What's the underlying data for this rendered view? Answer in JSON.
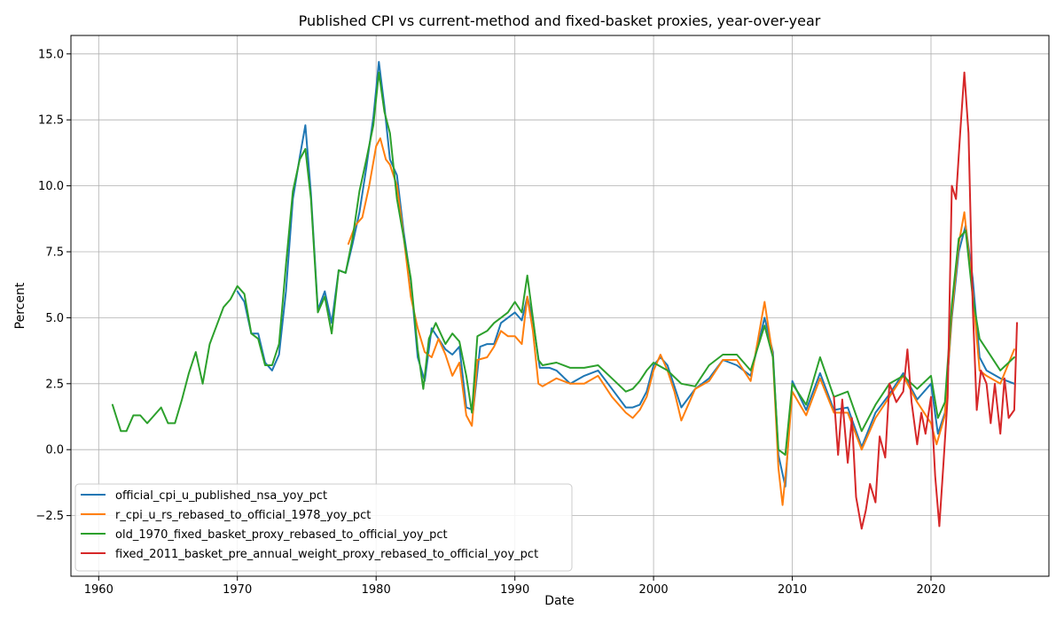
{
  "chart_data": {
    "type": "line",
    "title": "Published CPI vs current-method and fixed-basket proxies, year-over-year",
    "xlabel": "Date",
    "ylabel": "Percent",
    "xlim": [
      1958,
      2028.5
    ],
    "ylim": [
      -4.8,
      15.7
    ],
    "xticks": [
      1960,
      1970,
      1980,
      1990,
      2000,
      2010,
      2020
    ],
    "yticks": [
      -2.5,
      0.0,
      2.5,
      5.0,
      7.5,
      10.0,
      12.5,
      15.0
    ],
    "ytick_labels": [
      "−2.5",
      "0.0",
      "2.5",
      "5.0",
      "7.5",
      "10.0",
      "12.5",
      "15.0"
    ],
    "grid": true,
    "legend_position": "lower-left",
    "series": [
      {
        "name": "official_cpi_u_published_nsa_yoy_pct",
        "color": "#1f77b4",
        "x": [
          1970.0,
          1970.5,
          1971.0,
          1971.5,
          1972.0,
          1972.5,
          1973.0,
          1973.5,
          1974.0,
          1974.5,
          1974.9,
          1975.3,
          1975.8,
          1976.3,
          1976.8,
          1977.3,
          1977.8,
          1978.3,
          1978.8,
          1979.3,
          1979.8,
          1980.2,
          1980.6,
          1981.0,
          1981.5,
          1982.0,
          1982.5,
          1983.0,
          1983.5,
          1984.0,
          1984.5,
          1985.0,
          1985.5,
          1986.0,
          1986.5,
          1987.0,
          1987.5,
          1988.0,
          1988.5,
          1989.0,
          1989.5,
          1990.0,
          1990.5,
          1990.9,
          1991.3,
          1991.8,
          1992.5,
          1993.0,
          1994.0,
          1995.0,
          1996.0,
          1997.0,
          1998.0,
          1998.5,
          1999.0,
          1999.5,
          2000.0,
          2000.5,
          2001.0,
          2002.0,
          2003.0,
          2004.0,
          2005.0,
          2006.0,
          2007.0,
          2008.0,
          2008.6,
          2009.0,
          2009.5,
          2010.0,
          2011.0,
          2012.0,
          2013.0,
          2014.0,
          2015.0,
          2016.0,
          2017.0,
          2018.0,
          2019.0,
          2020.0,
          2020.5,
          2021.0,
          2021.5,
          2022.0,
          2022.5,
          2023.0,
          2023.5,
          2024.0,
          2025.0,
          2026.0
        ],
        "y": [
          6.0,
          5.6,
          4.4,
          4.4,
          3.3,
          3.0,
          3.6,
          6.0,
          9.5,
          11.1,
          12.3,
          9.7,
          5.3,
          6.0,
          4.8,
          6.8,
          6.7,
          7.8,
          9.0,
          10.7,
          12.6,
          14.7,
          13.0,
          11.0,
          10.4,
          8.2,
          6.4,
          3.5,
          2.6,
          4.6,
          4.2,
          3.8,
          3.6,
          3.9,
          1.6,
          1.5,
          3.9,
          4.0,
          4.0,
          4.8,
          5.0,
          5.2,
          4.9,
          5.8,
          4.9,
          3.1,
          3.1,
          3.0,
          2.5,
          2.8,
          3.0,
          2.3,
          1.6,
          1.6,
          1.7,
          2.2,
          3.2,
          3.5,
          3.2,
          1.6,
          2.3,
          2.7,
          3.4,
          3.2,
          2.8,
          5.0,
          3.7,
          -0.2,
          -1.4,
          2.6,
          1.5,
          2.9,
          1.5,
          1.6,
          0.1,
          1.4,
          2.1,
          2.9,
          1.9,
          2.5,
          0.6,
          1.4,
          5.0,
          7.5,
          8.5,
          6.5,
          3.5,
          3.0,
          2.7,
          2.5
        ]
      },
      {
        "name": "r_cpi_u_rs_rebased_to_official_1978_yoy_pct",
        "color": "#ff7f0e",
        "x": [
          1978.0,
          1978.5,
          1979.0,
          1979.5,
          1980.0,
          1980.3,
          1980.7,
          1981.0,
          1981.5,
          1982.0,
          1982.5,
          1983.0,
          1983.5,
          1984.0,
          1984.5,
          1985.0,
          1985.5,
          1986.0,
          1986.5,
          1986.9,
          1987.3,
          1988.0,
          1988.5,
          1989.0,
          1989.5,
          1990.0,
          1990.5,
          1990.9,
          1991.3,
          1991.7,
          1992.0,
          1993.0,
          1994.0,
          1995.0,
          1996.0,
          1997.0,
          1998.0,
          1998.5,
          1999.0,
          1999.5,
          2000.0,
          2000.5,
          2001.0,
          2001.5,
          2002.0,
          2003.0,
          2004.0,
          2005.0,
          2006.0,
          2007.0,
          2008.0,
          2008.6,
          2009.0,
          2009.3,
          2009.6,
          2010.0,
          2011.0,
          2012.0,
          2013.0,
          2014.0,
          2015.0,
          2016.0,
          2017.0,
          2018.0,
          2019.0,
          2020.0,
          2020.4,
          2021.0,
          2021.5,
          2022.0,
          2022.4,
          2023.0,
          2023.5,
          2024.0,
          2025.0,
          2026.0
        ],
        "y": [
          7.8,
          8.5,
          8.8,
          10.0,
          11.5,
          11.8,
          11.0,
          10.8,
          10.0,
          8.0,
          5.8,
          4.6,
          3.7,
          3.5,
          4.2,
          3.6,
          2.8,
          3.3,
          1.3,
          0.9,
          3.4,
          3.5,
          3.9,
          4.5,
          4.3,
          4.3,
          4.0,
          5.8,
          4.5,
          2.5,
          2.4,
          2.7,
          2.5,
          2.5,
          2.8,
          2.0,
          1.4,
          1.2,
          1.5,
          2.0,
          3.0,
          3.6,
          3.0,
          2.2,
          1.1,
          2.3,
          2.6,
          3.4,
          3.4,
          2.6,
          5.6,
          3.5,
          -0.7,
          -2.1,
          -0.5,
          2.2,
          1.3,
          2.7,
          1.4,
          1.4,
          0.0,
          1.2,
          2.0,
          2.8,
          1.8,
          1.0,
          0.2,
          1.3,
          5.2,
          7.8,
          9.0,
          6.0,
          3.0,
          2.8,
          2.5,
          3.8
        ]
      },
      {
        "name": "old_1970_fixed_basket_proxy_rebased_to_official_yoy_pct",
        "color": "#2ca02c",
        "x": [
          1961.0,
          1961.3,
          1961.6,
          1962.0,
          1962.5,
          1963.0,
          1963.5,
          1964.0,
          1964.5,
          1965.0,
          1965.5,
          1966.0,
          1966.5,
          1967.0,
          1967.5,
          1968.0,
          1968.5,
          1969.0,
          1969.5,
          1970.0,
          1970.5,
          1971.0,
          1971.5,
          1972.0,
          1972.5,
          1973.0,
          1973.5,
          1974.0,
          1974.5,
          1974.9,
          1975.3,
          1975.8,
          1976.3,
          1976.8,
          1977.3,
          1977.8,
          1978.3,
          1978.8,
          1979.3,
          1979.8,
          1980.2,
          1980.6,
          1981.0,
          1981.5,
          1982.0,
          1982.5,
          1983.0,
          1983.4,
          1983.8,
          1984.3,
          1985.0,
          1985.5,
          1986.0,
          1986.5,
          1986.9,
          1987.3,
          1988.0,
          1988.5,
          1989.0,
          1989.5,
          1990.0,
          1990.5,
          1990.9,
          1991.3,
          1991.7,
          1992.0,
          1993.0,
          1994.0,
          1995.0,
          1996.0,
          1997.0,
          1998.0,
          1998.5,
          1999.0,
          1999.5,
          2000.0,
          2001.0,
          2002.0,
          2003.0,
          2004.0,
          2005.0,
          2006.0,
          2007.0,
          2008.0,
          2008.6,
          2009.0,
          2009.5,
          2010.0,
          2011.0,
          2012.0,
          2013.0,
          2014.0,
          2015.0,
          2016.0,
          2017.0,
          2018.0,
          2019.0,
          2020.0,
          2020.5,
          2021.0,
          2021.5,
          2022.0,
          2022.5,
          2023.0,
          2023.5,
          2024.0,
          2025.0,
          2026.0
        ],
        "y": [
          1.7,
          1.2,
          0.7,
          0.7,
          1.3,
          1.3,
          1.0,
          1.3,
          1.6,
          1.0,
          1.0,
          1.9,
          2.9,
          3.7,
          2.5,
          4.0,
          4.7,
          5.4,
          5.7,
          6.2,
          5.9,
          4.4,
          4.2,
          3.2,
          3.2,
          4.0,
          7.0,
          9.8,
          11.0,
          11.4,
          9.5,
          5.2,
          5.8,
          4.4,
          6.8,
          6.7,
          8.0,
          9.8,
          11.0,
          12.3,
          14.3,
          12.8,
          12.0,
          9.5,
          8.0,
          6.5,
          3.8,
          2.3,
          4.2,
          4.8,
          4.0,
          4.4,
          4.1,
          2.8,
          1.4,
          4.3,
          4.5,
          4.8,
          5.0,
          5.2,
          5.6,
          5.2,
          6.6,
          5.0,
          3.4,
          3.2,
          3.3,
          3.1,
          3.1,
          3.2,
          2.7,
          2.2,
          2.3,
          2.6,
          3.0,
          3.3,
          3.0,
          2.5,
          2.4,
          3.2,
          3.6,
          3.6,
          3.0,
          4.7,
          3.5,
          0.0,
          -0.2,
          2.5,
          1.7,
          3.5,
          2.0,
          2.2,
          0.7,
          1.7,
          2.5,
          2.8,
          2.3,
          2.8,
          1.2,
          1.8,
          5.5,
          8.0,
          8.3,
          5.8,
          4.2,
          3.8,
          3.0,
          3.5
        ]
      },
      {
        "name": "fixed_2011_basket_pre_annual_weight_proxy_rebased_to_official_yoy_pct",
        "color": "#d62728",
        "x": [
          2013.0,
          2013.3,
          2013.6,
          2014.0,
          2014.3,
          2014.6,
          2015.0,
          2015.3,
          2015.6,
          2016.0,
          2016.3,
          2016.7,
          2017.0,
          2017.5,
          2018.0,
          2018.3,
          2018.6,
          2019.0,
          2019.3,
          2019.6,
          2020.0,
          2020.3,
          2020.6,
          2020.9,
          2021.2,
          2021.5,
          2021.8,
          2022.1,
          2022.4,
          2022.7,
          2023.0,
          2023.3,
          2023.6,
          2024.0,
          2024.3,
          2024.6,
          2025.0,
          2025.3,
          2025.6,
          2026.0,
          2026.2
        ],
        "y": [
          2.0,
          -0.2,
          1.9,
          -0.5,
          1.2,
          -1.8,
          -3.0,
          -2.3,
          -1.3,
          -2.0,
          0.5,
          -0.3,
          2.5,
          1.8,
          2.2,
          3.8,
          1.8,
          0.2,
          1.4,
          0.6,
          2.0,
          -1.0,
          -2.9,
          -0.5,
          2.0,
          10.0,
          9.5,
          12.0,
          14.3,
          12.0,
          5.5,
          1.5,
          3.0,
          2.5,
          1.0,
          2.5,
          0.6,
          2.7,
          1.2,
          1.5,
          4.8
        ]
      }
    ]
  }
}
